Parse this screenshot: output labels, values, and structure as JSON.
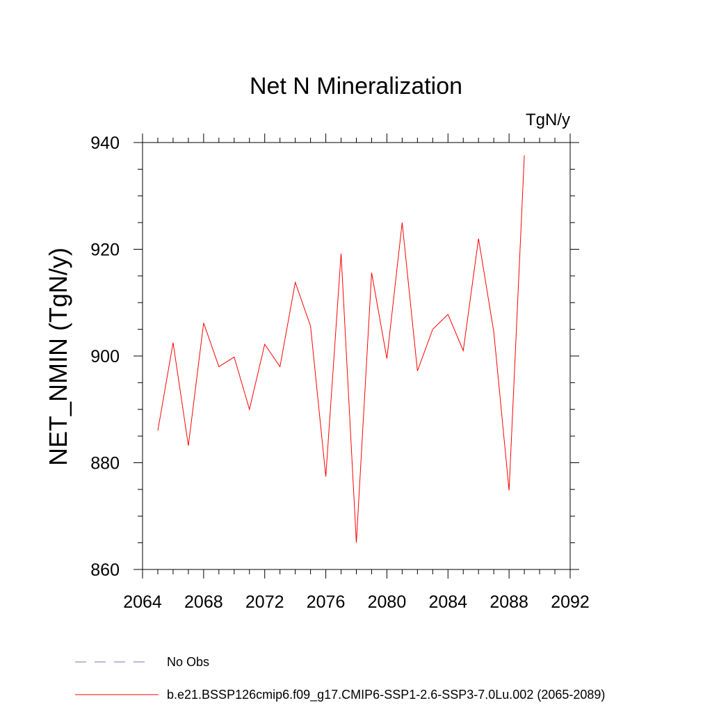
{
  "chart_data": {
    "type": "line",
    "title": "Net N Mineralization",
    "units": "TgN/y",
    "xlabel": "",
    "ylabel": "NET_NMIN  (TgN/y)",
    "xlim": [
      2064,
      2092
    ],
    "ylim": [
      860,
      940
    ],
    "x_major_ticks": [
      2064,
      2068,
      2072,
      2076,
      2080,
      2084,
      2088,
      2092
    ],
    "x_tick_labels": [
      "2064",
      "2068",
      "2072",
      "2076",
      "2080",
      "2084",
      "2088",
      "2092"
    ],
    "y_major_ticks": [
      860,
      880,
      900,
      920,
      940
    ],
    "y_tick_labels": [
      "860",
      "880",
      "900",
      "920",
      "940"
    ],
    "x_minor_step": 1,
    "y_minor_step": 5,
    "grid": false,
    "series": [
      {
        "name": "b.e21.BSSP126cmip6.f09_g17.CMIP6-SSP1-2.6-SSP3-7.0Lu.002 (2065-2089)",
        "color": "#ff0000",
        "style": "solid",
        "x": [
          2065,
          2066,
          2067,
          2068,
          2069,
          2070,
          2071,
          2072,
          2073,
          2074,
          2075,
          2076,
          2077,
          2078,
          2079,
          2080,
          2081,
          2082,
          2083,
          2084,
          2085,
          2086,
          2087,
          2088,
          2089
        ],
        "values": [
          886.0,
          902.5,
          883.2,
          906.2,
          898.0,
          899.8,
          890.0,
          902.2,
          898.0,
          913.8,
          905.6,
          877.4,
          919.2,
          865.0,
          915.6,
          899.5,
          925.0,
          897.2,
          905.0,
          907.8,
          901.0,
          922.0,
          904.5,
          874.8,
          937.6
        ]
      }
    ],
    "legend": {
      "placement": "bottom-left",
      "entries": [
        {
          "label": "No Obs",
          "color": "#7b6fb0",
          "style": "dashed"
        },
        {
          "label": "b.e21.BSSP126cmip6.f09_g17.CMIP6-SSP1-2.6-SSP3-7.0Lu.002 (2065-2089)",
          "color": "#ff0000",
          "style": "solid"
        }
      ]
    }
  }
}
